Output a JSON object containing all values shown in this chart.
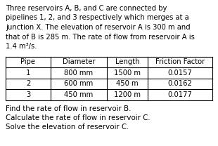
{
  "para_lines": [
    "Three reservoirs A, B, and C are connected by",
    "pipelines 1, 2, and 3 respectively which merges at a",
    "junction X. The elevation of reservoir A is 300 m and",
    "that of B is 285 m. The rate of flow from reservoir A is",
    "1.4 m³/s."
  ],
  "table_headers": [
    "Pipe",
    "Diameter",
    "Length",
    "Friction Factor"
  ],
  "table_rows": [
    [
      "1",
      "800 mm",
      "1500 m",
      "0.0157"
    ],
    [
      "2",
      "600 mm",
      "450 m",
      "0.0162"
    ],
    [
      "3",
      "450 mm",
      "1200 m",
      "0.0177"
    ]
  ],
  "questions": [
    "Find the rate of flow in reservoir B.",
    "Calculate the rate of flow in reservoir C.",
    "Solve the elevation of reservoir C."
  ],
  "bg_color": "#ffffff",
  "text_color": "#000000",
  "para_fontsize": 7.2,
  "table_fontsize": 7.2,
  "q_fontsize": 7.4,
  "line_color": "#000000"
}
